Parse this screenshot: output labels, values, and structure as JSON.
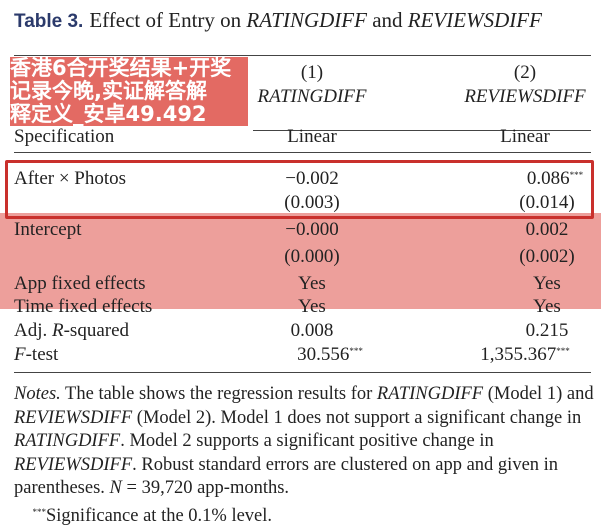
{
  "table": {
    "number": "Table 3.",
    "title_parts": [
      "Effect of Entry on ",
      "RATINGDIFF",
      " and ",
      "REVIEWSDIFF"
    ],
    "columns": [
      {
        "num": "(1)",
        "name": "RATINGDIFF"
      },
      {
        "num": "(2)",
        "name": "REVIEWSDIFF"
      }
    ],
    "spec_label": "Specification",
    "spec_values": [
      "Linear",
      "Linear"
    ],
    "rows": [
      {
        "label": "After × Photos",
        "v1": "−0.002",
        "s1": "",
        "v2": "0.086",
        "s2": "***",
        "se1": "(0.003)",
        "se2": "(0.014)"
      },
      {
        "label": "Intercept",
        "v1": "−0.000",
        "s1": "",
        "v2": "0.002",
        "s2": "",
        "se1": "(0.000)",
        "se2": "(0.002)"
      },
      {
        "label": "App fixed effects",
        "v1": "Yes",
        "v2": "Yes"
      },
      {
        "label": "Time fixed effects",
        "v1": "Yes",
        "v2": "Yes"
      },
      {
        "label_pre": "Adj. ",
        "label_it": "R",
        "label_post": "-squared",
        "v1": "0.008",
        "v2": "0.215"
      },
      {
        "label_it": "F",
        "label_post": "-test",
        "v1": "30.556",
        "s1": "***",
        "v2": "1,355.367",
        "s2": "***"
      }
    ],
    "notes": {
      "lead": "Notes.",
      "t1": " The table shows the regression results for ",
      "i1": "RATINGDIFF",
      "t2": " (Model 1) and ",
      "i2": "REVIEWSDIFF",
      "t3": " (Model 2). Model 1 does not support a significant change in ",
      "i3": "RATINGDIFF",
      "t4": ". Model 2 supports a significant positive change in ",
      "i4": "REVIEWSDIFF",
      "t5": ". Robust standard errors are clustered on app and given in parentheses. ",
      "i5": "N",
      "t6": " = 39,720 app-months.",
      "sig_mark": "***",
      "sig": "Significance at the 0.1% level."
    }
  },
  "banner": {
    "line1": "香港6合开奖结果+开奖记录今晚,实证解答解",
    "line2": "释定义_安卓49.492",
    "color": "#de5048"
  },
  "highlight_color": "#c9302c"
}
